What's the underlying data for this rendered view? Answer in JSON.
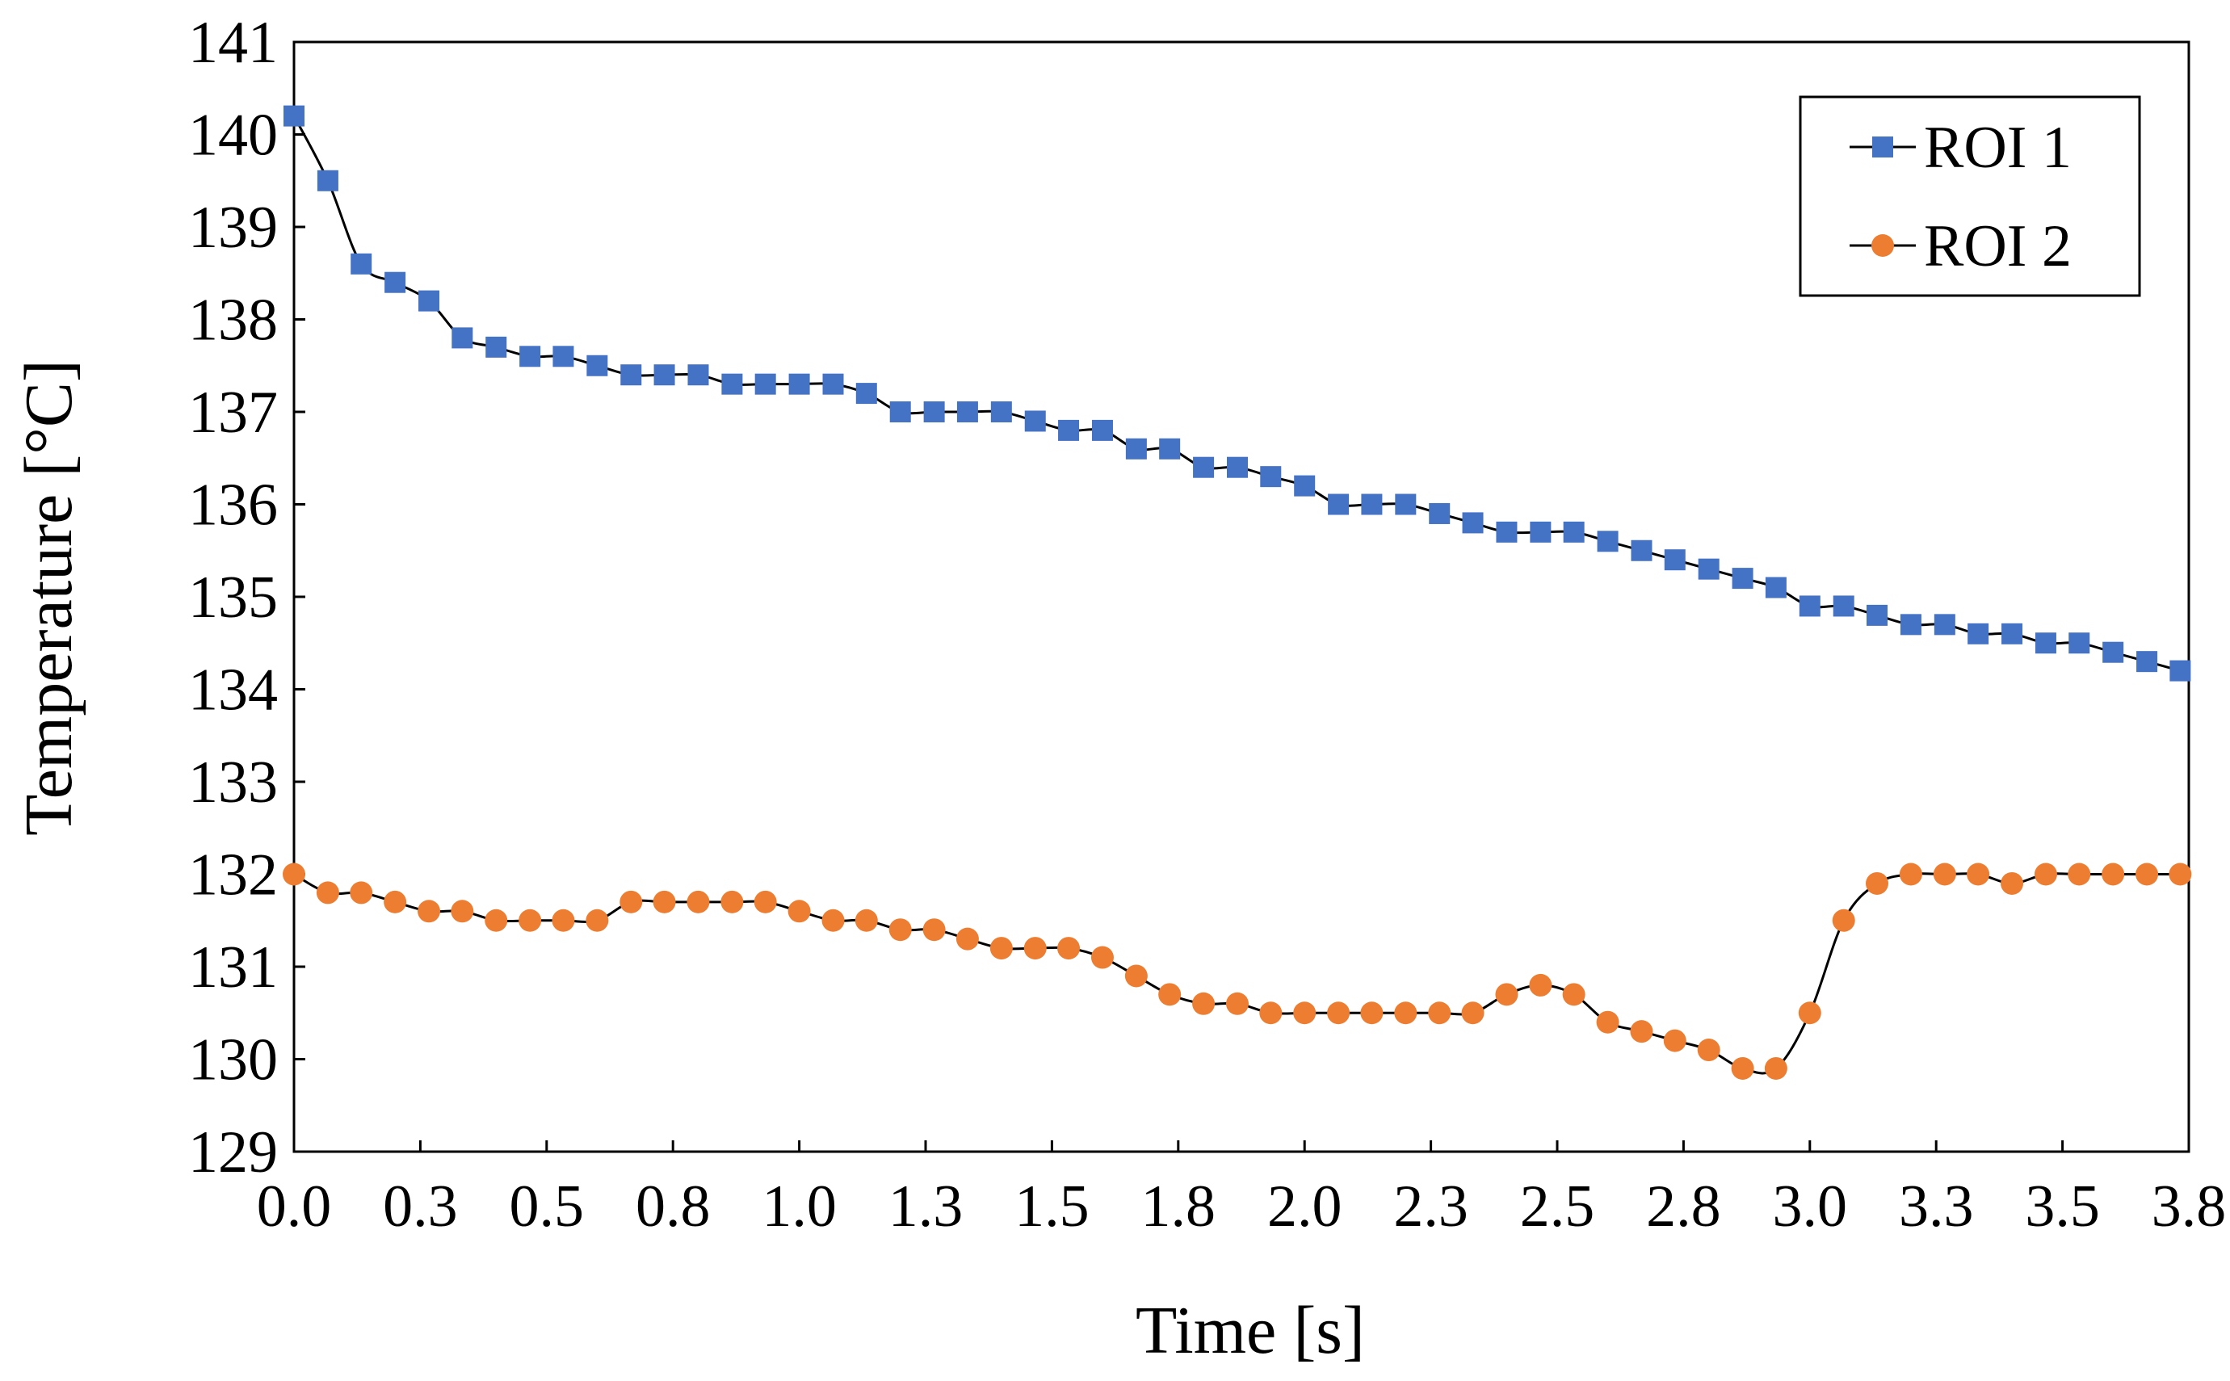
{
  "chart_data": {
    "type": "line",
    "title": "",
    "xlabel": "Time [s]",
    "ylabel": "Temperature [°C]",
    "xlim": [
      0,
      3.75
    ],
    "ylim": [
      129,
      141
    ],
    "x_ticks": [
      0.0,
      0.25,
      0.5,
      0.75,
      1.0,
      1.25,
      1.5,
      1.75,
      2.0,
      2.25,
      2.5,
      2.75,
      3.0,
      3.25,
      3.5,
      3.75
    ],
    "x_tick_labels": [
      "0.0",
      "0.3",
      "0.5",
      "0.8",
      "1.0",
      "1.3",
      "1.5",
      "1.8",
      "2.0",
      "2.3",
      "2.5",
      "2.8",
      "3.0",
      "3.3",
      "3.5",
      "3.8"
    ],
    "y_ticks": [
      129,
      130,
      131,
      132,
      133,
      134,
      135,
      136,
      137,
      138,
      139,
      140,
      141
    ],
    "y_tick_labels": [
      "129",
      "130",
      "131",
      "132",
      "133",
      "134",
      "135",
      "136",
      "137",
      "138",
      "139",
      "140",
      "141"
    ],
    "grid": false,
    "legend_position": "top-right",
    "x": [
      0.0,
      0.067,
      0.133,
      0.2,
      0.267,
      0.333,
      0.4,
      0.467,
      0.533,
      0.6,
      0.667,
      0.733,
      0.8,
      0.867,
      0.933,
      1.0,
      1.067,
      1.133,
      1.2,
      1.267,
      1.333,
      1.4,
      1.467,
      1.533,
      1.6,
      1.667,
      1.733,
      1.8,
      1.867,
      1.933,
      2.0,
      2.067,
      2.133,
      2.2,
      2.267,
      2.333,
      2.4,
      2.467,
      2.533,
      2.6,
      2.667,
      2.733,
      2.8,
      2.867,
      2.933,
      3.0,
      3.067,
      3.133,
      3.2,
      3.267,
      3.333,
      3.4,
      3.467,
      3.533,
      3.6,
      3.667,
      3.733
    ],
    "series": [
      {
        "name": "ROI 1",
        "color": "#4472C4",
        "marker": "square",
        "values": [
          140.2,
          139.5,
          138.6,
          138.4,
          138.2,
          137.8,
          137.7,
          137.6,
          137.6,
          137.5,
          137.4,
          137.4,
          137.4,
          137.3,
          137.3,
          137.3,
          137.3,
          137.2,
          137.0,
          137.0,
          137.0,
          137.0,
          136.9,
          136.8,
          136.8,
          136.6,
          136.6,
          136.4,
          136.4,
          136.3,
          136.2,
          136.0,
          136.0,
          136.0,
          135.9,
          135.8,
          135.7,
          135.7,
          135.7,
          135.6,
          135.5,
          135.4,
          135.3,
          135.2,
          135.1,
          134.9,
          134.9,
          134.8,
          134.7,
          134.7,
          134.6,
          134.6,
          134.5,
          134.5,
          134.4,
          134.3,
          134.2
        ]
      },
      {
        "name": "ROI 2",
        "color": "#ED7D31",
        "marker": "circle",
        "values": [
          132.0,
          131.8,
          131.8,
          131.7,
          131.6,
          131.6,
          131.5,
          131.5,
          131.5,
          131.5,
          131.7,
          131.7,
          131.7,
          131.7,
          131.7,
          131.6,
          131.5,
          131.5,
          131.4,
          131.4,
          131.3,
          131.2,
          131.2,
          131.2,
          131.1,
          130.9,
          130.7,
          130.6,
          130.6,
          130.5,
          130.5,
          130.5,
          130.5,
          130.5,
          130.5,
          130.5,
          130.7,
          130.8,
          130.7,
          130.4,
          130.3,
          130.2,
          130.1,
          129.9,
          129.9,
          130.5,
          131.5,
          131.9,
          132.0,
          132.0,
          132.0,
          131.9,
          132.0,
          132.0,
          132.0,
          132.0,
          132.0
        ]
      }
    ]
  }
}
